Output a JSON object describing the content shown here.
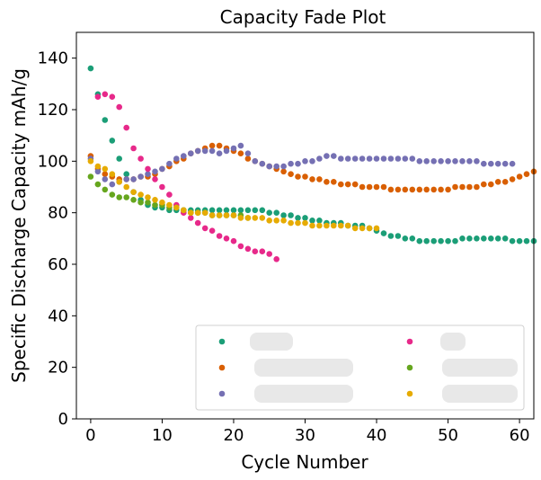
{
  "chart_data": {
    "type": "scatter",
    "title": "Capacity Fade Plot",
    "xlabel": "Cycle Number",
    "ylabel": "Specific Discharge Capacity mAh/g",
    "xlim": [
      -2,
      62
    ],
    "ylim": [
      0,
      150
    ],
    "xticks": [
      0,
      10,
      20,
      30,
      40,
      50,
      60
    ],
    "yticks": [
      0,
      20,
      40,
      60,
      80,
      100,
      120,
      140
    ],
    "grid": false,
    "legend_placement": "lower-right",
    "series": [
      {
        "color": "#1b9e77",
        "points": [
          [
            0,
            136
          ],
          [
            1,
            126
          ],
          [
            2,
            116
          ],
          [
            3,
            108
          ],
          [
            4,
            101
          ],
          [
            5,
            95
          ],
          [
            6,
            88
          ],
          [
            7,
            85
          ],
          [
            8,
            83
          ],
          [
            9,
            82
          ],
          [
            10,
            82
          ],
          [
            11,
            81
          ],
          [
            12,
            81
          ],
          [
            13,
            81
          ],
          [
            14,
            81
          ],
          [
            15,
            81
          ],
          [
            16,
            81
          ],
          [
            17,
            81
          ],
          [
            18,
            81
          ],
          [
            19,
            81
          ],
          [
            20,
            81
          ],
          [
            21,
            81
          ],
          [
            22,
            81
          ],
          [
            23,
            81
          ],
          [
            24,
            81
          ],
          [
            25,
            80
          ],
          [
            26,
            80
          ],
          [
            27,
            79
          ],
          [
            28,
            79
          ],
          [
            29,
            78
          ],
          [
            30,
            78
          ],
          [
            31,
            77
          ],
          [
            32,
            77
          ],
          [
            33,
            76
          ],
          [
            34,
            76
          ],
          [
            35,
            76
          ],
          [
            36,
            75
          ],
          [
            37,
            75
          ],
          [
            38,
            75
          ],
          [
            39,
            74
          ],
          [
            40,
            73
          ],
          [
            41,
            72
          ],
          [
            42,
            71
          ],
          [
            43,
            71
          ],
          [
            44,
            70
          ],
          [
            45,
            70
          ],
          [
            46,
            69
          ],
          [
            47,
            69
          ],
          [
            48,
            69
          ],
          [
            49,
            69
          ],
          [
            50,
            69
          ],
          [
            51,
            69
          ],
          [
            52,
            70
          ],
          [
            53,
            70
          ],
          [
            54,
            70
          ],
          [
            55,
            70
          ],
          [
            56,
            70
          ],
          [
            57,
            70
          ],
          [
            58,
            70
          ],
          [
            59,
            69
          ],
          [
            60,
            69
          ],
          [
            61,
            69
          ],
          [
            62,
            69
          ]
        ]
      },
      {
        "color": "#d95f02",
        "points": [
          [
            0,
            102
          ],
          [
            1,
            97
          ],
          [
            2,
            95
          ],
          [
            3,
            94
          ],
          [
            4,
            93
          ],
          [
            5,
            93
          ],
          [
            6,
            93
          ],
          [
            7,
            94
          ],
          [
            8,
            94
          ],
          [
            9,
            95
          ],
          [
            10,
            97
          ],
          [
            11,
            98
          ],
          [
            12,
            100
          ],
          [
            13,
            101
          ],
          [
            14,
            103
          ],
          [
            15,
            104
          ],
          [
            16,
            105
          ],
          [
            17,
            106
          ],
          [
            18,
            106
          ],
          [
            19,
            105
          ],
          [
            20,
            104
          ],
          [
            21,
            103
          ],
          [
            22,
            101
          ],
          [
            23,
            100
          ],
          [
            24,
            99
          ],
          [
            25,
            98
          ],
          [
            26,
            97
          ],
          [
            27,
            96
          ],
          [
            28,
            95
          ],
          [
            29,
            94
          ],
          [
            30,
            94
          ],
          [
            31,
            93
          ],
          [
            32,
            93
          ],
          [
            33,
            92
          ],
          [
            34,
            92
          ],
          [
            35,
            91
          ],
          [
            36,
            91
          ],
          [
            37,
            91
          ],
          [
            38,
            90
          ],
          [
            39,
            90
          ],
          [
            40,
            90
          ],
          [
            41,
            90
          ],
          [
            42,
            89
          ],
          [
            43,
            89
          ],
          [
            44,
            89
          ],
          [
            45,
            89
          ],
          [
            46,
            89
          ],
          [
            47,
            89
          ],
          [
            48,
            89
          ],
          [
            49,
            89
          ],
          [
            50,
            89
          ],
          [
            51,
            90
          ],
          [
            52,
            90
          ],
          [
            53,
            90
          ],
          [
            54,
            90
          ],
          [
            55,
            91
          ],
          [
            56,
            91
          ],
          [
            57,
            92
          ],
          [
            58,
            92
          ],
          [
            59,
            93
          ],
          [
            60,
            94
          ],
          [
            61,
            95
          ],
          [
            62,
            96
          ]
        ]
      },
      {
        "color": "#7570b3",
        "points": [
          [
            0,
            101
          ],
          [
            1,
            96
          ],
          [
            2,
            93
          ],
          [
            3,
            91
          ],
          [
            4,
            92
          ],
          [
            5,
            93
          ],
          [
            6,
            93
          ],
          [
            7,
            94
          ],
          [
            8,
            95
          ],
          [
            9,
            96
          ],
          [
            10,
            97
          ],
          [
            11,
            99
          ],
          [
            12,
            101
          ],
          [
            13,
            102
          ],
          [
            14,
            103
          ],
          [
            15,
            104
          ],
          [
            16,
            104
          ],
          [
            17,
            104
          ],
          [
            18,
            103
          ],
          [
            19,
            104
          ],
          [
            20,
            105
          ],
          [
            21,
            106
          ],
          [
            22,
            103
          ],
          [
            23,
            100
          ],
          [
            24,
            99
          ],
          [
            25,
            98
          ],
          [
            26,
            98
          ],
          [
            27,
            98
          ],
          [
            28,
            99
          ],
          [
            29,
            99
          ],
          [
            30,
            100
          ],
          [
            31,
            100
          ],
          [
            32,
            101
          ],
          [
            33,
            102
          ],
          [
            34,
            102
          ],
          [
            35,
            101
          ],
          [
            36,
            101
          ],
          [
            37,
            101
          ],
          [
            38,
            101
          ],
          [
            39,
            101
          ],
          [
            40,
            101
          ],
          [
            41,
            101
          ],
          [
            42,
            101
          ],
          [
            43,
            101
          ],
          [
            44,
            101
          ],
          [
            45,
            101
          ],
          [
            46,
            100
          ],
          [
            47,
            100
          ],
          [
            48,
            100
          ],
          [
            49,
            100
          ],
          [
            50,
            100
          ],
          [
            51,
            100
          ],
          [
            52,
            100
          ],
          [
            53,
            100
          ],
          [
            54,
            100
          ],
          [
            55,
            99
          ],
          [
            56,
            99
          ],
          [
            57,
            99
          ],
          [
            58,
            99
          ],
          [
            59,
            99
          ]
        ]
      },
      {
        "color": "#e7298a",
        "points": [
          [
            1,
            125
          ],
          [
            2,
            126
          ],
          [
            3,
            125
          ],
          [
            4,
            121
          ],
          [
            5,
            113
          ],
          [
            6,
            105
          ],
          [
            7,
            101
          ],
          [
            8,
            97
          ],
          [
            9,
            93
          ],
          [
            10,
            90
          ],
          [
            11,
            87
          ],
          [
            12,
            83
          ],
          [
            13,
            80
          ],
          [
            14,
            78
          ],
          [
            15,
            76
          ],
          [
            16,
            74
          ],
          [
            17,
            73
          ],
          [
            18,
            71
          ],
          [
            19,
            70
          ],
          [
            20,
            69
          ],
          [
            21,
            67
          ],
          [
            22,
            66
          ],
          [
            23,
            65
          ],
          [
            24,
            65
          ],
          [
            25,
            64
          ],
          [
            26,
            62
          ]
        ]
      },
      {
        "color": "#66a61e",
        "points": [
          [
            0,
            94
          ],
          [
            1,
            91
          ],
          [
            2,
            89
          ],
          [
            3,
            87
          ],
          [
            4,
            86
          ],
          [
            5,
            86
          ],
          [
            6,
            85
          ],
          [
            7,
            84
          ],
          [
            8,
            84
          ],
          [
            9,
            83
          ],
          [
            10,
            83
          ],
          [
            11,
            82
          ],
          [
            12,
            82
          ],
          [
            13,
            81
          ],
          [
            14,
            80
          ],
          [
            15,
            80
          ],
          [
            16,
            80
          ],
          [
            17,
            79
          ],
          [
            18,
            79
          ],
          [
            19,
            79
          ],
          [
            20,
            79
          ],
          [
            21,
            79
          ],
          [
            22,
            78
          ]
        ]
      },
      {
        "color": "#e6ab02",
        "points": [
          [
            0,
            100
          ],
          [
            1,
            98
          ],
          [
            2,
            97
          ],
          [
            3,
            95
          ],
          [
            4,
            92
          ],
          [
            5,
            90
          ],
          [
            6,
            88
          ],
          [
            7,
            87
          ],
          [
            8,
            86
          ],
          [
            9,
            85
          ],
          [
            10,
            84
          ],
          [
            11,
            83
          ],
          [
            12,
            82
          ],
          [
            13,
            81
          ],
          [
            14,
            80
          ],
          [
            15,
            80
          ],
          [
            16,
            80
          ],
          [
            17,
            79
          ],
          [
            18,
            79
          ],
          [
            19,
            79
          ],
          [
            20,
            79
          ],
          [
            21,
            78
          ],
          [
            22,
            78
          ],
          [
            23,
            78
          ],
          [
            24,
            78
          ],
          [
            25,
            77
          ],
          [
            26,
            77
          ],
          [
            27,
            77
          ],
          [
            28,
            76
          ],
          [
            29,
            76
          ],
          [
            30,
            76
          ],
          [
            31,
            75
          ],
          [
            32,
            75
          ],
          [
            33,
            75
          ],
          [
            34,
            75
          ],
          [
            35,
            75
          ],
          [
            36,
            75
          ],
          [
            37,
            74
          ],
          [
            38,
            74
          ],
          [
            39,
            74
          ],
          [
            40,
            74
          ]
        ]
      }
    ],
    "legend_entries": [
      {
        "color": "#1b9e77",
        "col": 0,
        "row": 0
      },
      {
        "color": "#d95f02",
        "col": 0,
        "row": 1
      },
      {
        "color": "#7570b3",
        "col": 0,
        "row": 2
      },
      {
        "color": "#e7298a",
        "col": 1,
        "row": 0
      },
      {
        "color": "#66a61e",
        "col": 1,
        "row": 1
      },
      {
        "color": "#e6ab02",
        "col": 1,
        "row": 2
      }
    ]
  }
}
